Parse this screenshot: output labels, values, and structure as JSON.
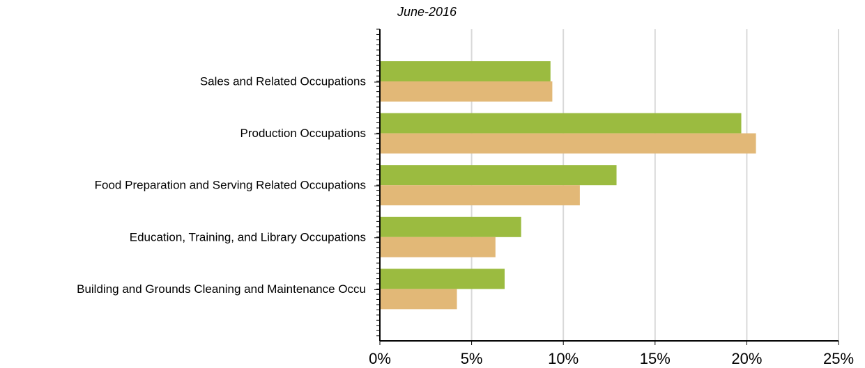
{
  "chart_data": {
    "type": "bar",
    "orientation": "horizontal",
    "subtitle": "June-2016",
    "categories": [
      "Sales and Related Occupations",
      "Production Occupations",
      "Food Preparation and Serving Related Occupations",
      "Education, Training, and Library Occupations",
      "Building and Grounds Cleaning and Maintenance Occu"
    ],
    "series": [
      {
        "color": "#9bbb40",
        "values": [
          9.3,
          19.7,
          12.9,
          7.7,
          6.8
        ]
      },
      {
        "color": "#e2b877",
        "values": [
          9.4,
          20.5,
          10.9,
          6.3,
          4.2
        ]
      }
    ],
    "xlim": [
      0,
      25
    ],
    "xticks": [
      {
        "value": 0,
        "label": "0%"
      },
      {
        "value": 5,
        "label": "5%"
      },
      {
        "value": 10,
        "label": "10%"
      },
      {
        "value": 15,
        "label": "15%"
      },
      {
        "value": 20,
        "label": "20%"
      },
      {
        "value": 25,
        "label": "25%"
      }
    ],
    "grid": true
  }
}
